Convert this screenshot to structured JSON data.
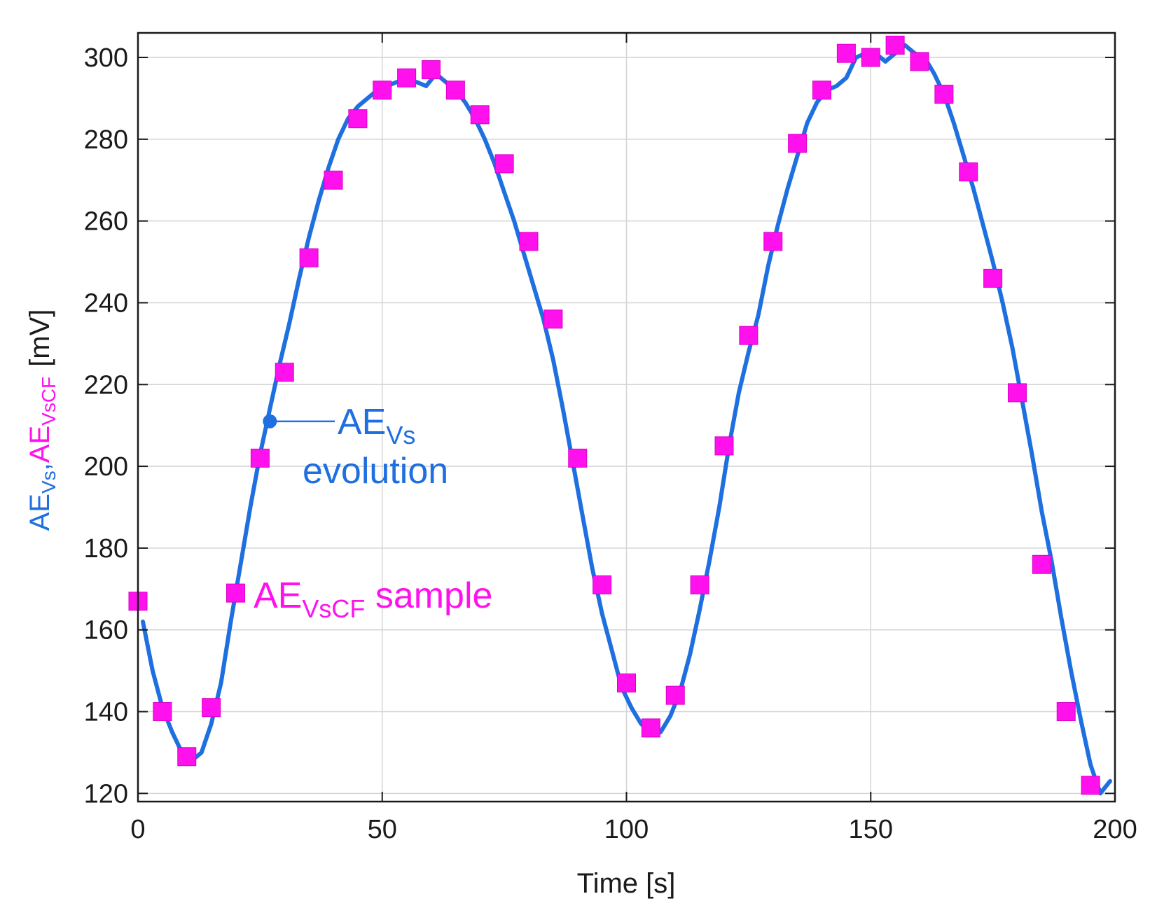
{
  "chart_data": {
    "type": "line",
    "title": "",
    "xlabel": "Time [s]",
    "ylabel": {
      "part1_main": "AE",
      "part1_sub": "Vs",
      "separator": ",",
      "part2_main": "AE",
      "part2_sub": "VsCF",
      "unit": "[mV]"
    },
    "xlim": [
      0,
      200
    ],
    "ylim": [
      118,
      306
    ],
    "xticks": [
      0,
      50,
      100,
      150,
      200
    ],
    "yticks": [
      120,
      140,
      160,
      180,
      200,
      220,
      240,
      260,
      280,
      300
    ],
    "grid": true,
    "colors": {
      "line": "#1e6fe0",
      "samples": "#ff11ee",
      "axis": "#1a1a1a",
      "grid": "#d4d4d4"
    },
    "series": [
      {
        "name": "AE_Vs evolution",
        "kind": "line",
        "x": [
          1,
          3,
          5,
          7,
          9,
          11,
          13,
          15,
          17,
          19,
          21,
          23,
          25,
          27,
          29,
          31,
          33,
          35,
          37,
          39,
          41,
          43,
          45,
          47,
          49,
          51,
          53,
          55,
          57,
          59,
          61,
          63,
          65,
          67,
          69,
          71,
          73,
          75,
          77,
          79,
          81,
          83,
          85,
          87,
          89,
          91,
          93,
          95,
          97,
          99,
          101,
          103,
          105,
          107,
          109,
          111,
          113,
          115,
          117,
          119,
          121,
          123,
          125,
          127,
          129,
          131,
          133,
          135,
          137,
          139,
          141,
          143,
          145,
          147,
          149,
          151,
          153,
          155,
          157,
          159,
          161,
          163,
          165,
          167,
          169,
          171,
          173,
          175,
          177,
          179,
          181,
          183,
          185,
          187,
          189,
          191,
          193,
          195,
          197,
          199
        ],
        "y": [
          162,
          150,
          141,
          135,
          130,
          128,
          130,
          137,
          147,
          162,
          176,
          190,
          203,
          214,
          225,
          235,
          246,
          256,
          265,
          273,
          280,
          285,
          288,
          290,
          292,
          293,
          294,
          294,
          294,
          293,
          296,
          294,
          292,
          289,
          285,
          280,
          274,
          267,
          260,
          252,
          244,
          236,
          226,
          214,
          201,
          188,
          175,
          164,
          155,
          146,
          141,
          137,
          135,
          135,
          139,
          145,
          154,
          165,
          177,
          190,
          205,
          218,
          228,
          237,
          249,
          259,
          268,
          276,
          284,
          289,
          292,
          293,
          295,
          300,
          301,
          301,
          299,
          301,
          303,
          301,
          300,
          296,
          291,
          284,
          276,
          268,
          259,
          250,
          240,
          229,
          216,
          203,
          189,
          177,
          163,
          150,
          138,
          127,
          120,
          123
        ]
      },
      {
        "name": "AE_VsCF sample",
        "kind": "scatter",
        "x": [
          0,
          5,
          10,
          15,
          20,
          25,
          30,
          35,
          40,
          45,
          50,
          55,
          60,
          65,
          70,
          75,
          80,
          85,
          90,
          95,
          100,
          105,
          110,
          115,
          120,
          125,
          130,
          135,
          140,
          145,
          150,
          155,
          160,
          165,
          170,
          175,
          180,
          185,
          190,
          195
        ],
        "y": [
          167,
          140,
          129,
          141,
          169,
          202,
          223,
          251,
          270,
          285,
          292,
          295,
          297,
          292,
          286,
          274,
          255,
          236,
          202,
          171,
          147,
          136,
          144,
          171,
          205,
          232,
          255,
          279,
          292,
          301,
          300,
          303,
          299,
          291,
          272,
          246,
          218,
          176,
          140,
          122
        ]
      }
    ],
    "annotations": [
      {
        "id": "evolution",
        "main": "AE",
        "sub": "Vs",
        "line2": "evolution",
        "point": [
          27,
          211
        ]
      },
      {
        "id": "sample",
        "main": "AE",
        "sub": "VsCF",
        "suffix": " sample"
      }
    ]
  }
}
